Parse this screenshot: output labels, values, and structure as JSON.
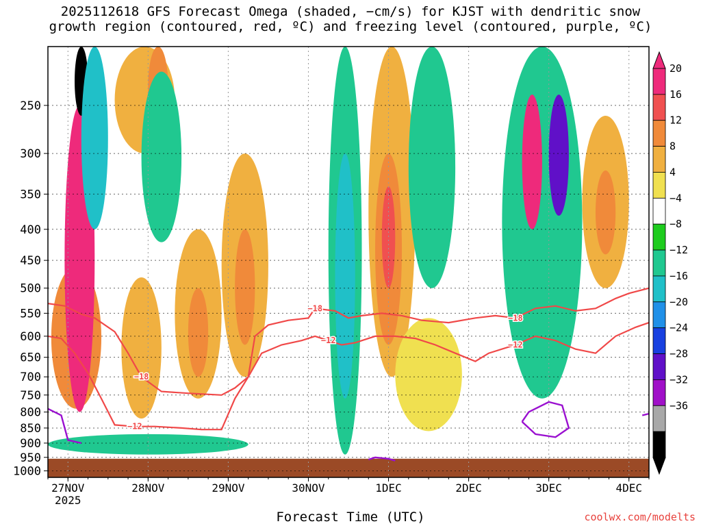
{
  "chart_data": {
    "type": "heatmap",
    "title_line1": "2025112618 GFS Forecast Omega (shaded, −cm/s) for KJST with dendritic snow",
    "title_line2": "growth region (contoured, red, ºC) and freezing level (contoured, purple, ºC)",
    "xlabel": "Forecast Time (UTC)",
    "ylabel": "",
    "y_ticks": [
      250,
      300,
      350,
      400,
      450,
      500,
      550,
      600,
      650,
      700,
      750,
      800,
      850,
      900,
      950,
      1000
    ],
    "y_range_hpa": [
      200,
      1025
    ],
    "x_ticks": [
      {
        "label": "27NOV",
        "sub": "2025",
        "hour": 6
      },
      {
        "label": "28NOV",
        "sub": "",
        "hour": 30
      },
      {
        "label": "29NOV",
        "sub": "",
        "hour": 54
      },
      {
        "label": "30NOV",
        "sub": "",
        "hour": 78
      },
      {
        "label": "1DEC",
        "sub": "",
        "hour": 102
      },
      {
        "label": "2DEC",
        "sub": "",
        "hour": 126
      },
      {
        "label": "3DEC",
        "sub": "",
        "hour": 150
      },
      {
        "label": "4DEC",
        "sub": "",
        "hour": 174
      }
    ],
    "x_range_hours": [
      0,
      180
    ],
    "colorbar": {
      "labels": [
        "20",
        "16",
        "12",
        "8",
        "4",
        "−4",
        "−8",
        "−12",
        "−16",
        "−20",
        "−24",
        "−28",
        "−32",
        "−36"
      ],
      "colors": [
        "#ee2a7b",
        "#f05050",
        "#f08a3a",
        "#f0b040",
        "#f0e050",
        "#ffffff",
        "#1ecc1e",
        "#20c890",
        "#20c0c8",
        "#2090e8",
        "#1840e0",
        "#6010c8",
        "#a010c8",
        "#a8a8a8",
        "#000000"
      ],
      "top_color": "#ee2a7b",
      "bottom_color": "#000000"
    },
    "omega_regions": [
      {
        "x0": 1,
        "x1": 16,
        "p0": 460,
        "p1": 790,
        "level": "12"
      },
      {
        "x0": 5,
        "x1": 14,
        "p0": 250,
        "p1": 800,
        "level": "20"
      },
      {
        "x0": 8,
        "x1": 12,
        "p0": 200,
        "p1": 260,
        "level": "-36"
      },
      {
        "x0": 10,
        "x1": 18,
        "p0": 200,
        "p1": 400,
        "level": "-12"
      },
      {
        "x0": 0,
        "x1": 60,
        "p0": 870,
        "p1": 940,
        "level": "-8"
      },
      {
        "x0": 20,
        "x1": 38,
        "p0": 200,
        "p1": 300,
        "level": "8"
      },
      {
        "x0": 30,
        "x1": 36,
        "p0": 200,
        "p1": 270,
        "level": "12"
      },
      {
        "x0": 22,
        "x1": 34,
        "p0": 480,
        "p1": 820,
        "level": "8"
      },
      {
        "x0": 38,
        "x1": 52,
        "p0": 400,
        "p1": 760,
        "level": "8"
      },
      {
        "x0": 42,
        "x1": 48,
        "p0": 500,
        "p1": 700,
        "level": "12"
      },
      {
        "x0": 52,
        "x1": 66,
        "p0": 300,
        "p1": 700,
        "level": "8"
      },
      {
        "x0": 56,
        "x1": 62,
        "p0": 400,
        "p1": 620,
        "level": "12"
      },
      {
        "x0": 28,
        "x1": 40,
        "p0": 220,
        "p1": 420,
        "level": "-8"
      },
      {
        "x0": 84,
        "x1": 94,
        "p0": 200,
        "p1": 940,
        "level": "-8"
      },
      {
        "x0": 86,
        "x1": 92,
        "p0": 300,
        "p1": 760,
        "level": "-12"
      },
      {
        "x0": 96,
        "x1": 110,
        "p0": 200,
        "p1": 700,
        "level": "8"
      },
      {
        "x0": 98,
        "x1": 106,
        "p0": 300,
        "p1": 620,
        "level": "12"
      },
      {
        "x0": 100,
        "x1": 104,
        "p0": 340,
        "p1": 500,
        "level": "16"
      },
      {
        "x0": 108,
        "x1": 122,
        "p0": 200,
        "p1": 500,
        "level": "-8"
      },
      {
        "x0": 104,
        "x1": 124,
        "p0": 560,
        "p1": 860,
        "level": "4"
      },
      {
        "x0": 136,
        "x1": 160,
        "p0": 200,
        "p1": 760,
        "level": "-8"
      },
      {
        "x0": 142,
        "x1": 148,
        "p0": 240,
        "p1": 400,
        "level": "20"
      },
      {
        "x0": 150,
        "x1": 156,
        "p0": 240,
        "p1": 380,
        "level": "-24"
      },
      {
        "x0": 160,
        "x1": 174,
        "p0": 260,
        "p1": 500,
        "level": "8"
      },
      {
        "x0": 164,
        "x1": 170,
        "p0": 320,
        "p1": 440,
        "level": "12"
      }
    ],
    "dgz_contours": [
      {
        "label": "−18",
        "points": [
          [
            0,
            530
          ],
          [
            5,
            535
          ],
          [
            10,
            552
          ],
          [
            14,
            560
          ],
          [
            20,
            590
          ],
          [
            24,
            640
          ],
          [
            28,
            700
          ],
          [
            34,
            740
          ],
          [
            42,
            745
          ],
          [
            52,
            750
          ],
          [
            56,
            730
          ],
          [
            60,
            700
          ],
          [
            62,
            600
          ],
          [
            66,
            575
          ],
          [
            72,
            565
          ],
          [
            78,
            560
          ],
          [
            80,
            540
          ],
          [
            86,
            545
          ],
          [
            90,
            560
          ],
          [
            94,
            555
          ],
          [
            100,
            550
          ],
          [
            106,
            555
          ],
          [
            112,
            565
          ],
          [
            120,
            570
          ],
          [
            128,
            560
          ],
          [
            134,
            555
          ],
          [
            140,
            560
          ],
          [
            146,
            540
          ],
          [
            152,
            535
          ],
          [
            158,
            545
          ],
          [
            164,
            540
          ],
          [
            170,
            520
          ],
          [
            174,
            510
          ],
          [
            180,
            500
          ]
        ]
      },
      {
        "label": "−12",
        "points": [
          [
            0,
            600
          ],
          [
            4,
            605
          ],
          [
            8,
            640
          ],
          [
            12,
            690
          ],
          [
            16,
            760
          ],
          [
            20,
            840
          ],
          [
            26,
            845
          ],
          [
            32,
            845
          ],
          [
            40,
            850
          ],
          [
            46,
            855
          ],
          [
            52,
            855
          ],
          [
            56,
            760
          ],
          [
            60,
            700
          ],
          [
            64,
            640
          ],
          [
            70,
            620
          ],
          [
            76,
            610
          ],
          [
            80,
            600
          ],
          [
            84,
            610
          ],
          [
            88,
            620
          ],
          [
            92,
            615
          ],
          [
            98,
            600
          ],
          [
            104,
            600
          ],
          [
            110,
            605
          ],
          [
            116,
            620
          ],
          [
            122,
            640
          ],
          [
            128,
            660
          ],
          [
            132,
            640
          ],
          [
            140,
            620
          ],
          [
            146,
            600
          ],
          [
            152,
            610
          ],
          [
            158,
            630
          ],
          [
            164,
            640
          ],
          [
            170,
            600
          ],
          [
            176,
            580
          ],
          [
            180,
            570
          ]
        ]
      }
    ],
    "freezing_contours": [
      {
        "points": [
          [
            0,
            790
          ],
          [
            4,
            810
          ],
          [
            6,
            890
          ],
          [
            10,
            900
          ]
        ]
      },
      {
        "points": [
          [
            96,
            958
          ],
          [
            98,
            950
          ],
          [
            102,
            955
          ],
          [
            104,
            962
          ]
        ]
      },
      {
        "points": [
          [
            142,
            830
          ],
          [
            144,
            800
          ],
          [
            150,
            770
          ],
          [
            154,
            780
          ],
          [
            156,
            850
          ],
          [
            152,
            880
          ],
          [
            146,
            870
          ],
          [
            142,
            830
          ]
        ]
      },
      {
        "points": [
          [
            178,
            810
          ],
          [
            180,
            805
          ]
        ]
      }
    ],
    "terrain_pressure_hpa": 955,
    "terrain_color": "#9b4a26",
    "grid": true,
    "credit": "coolwx.com/modelts"
  }
}
